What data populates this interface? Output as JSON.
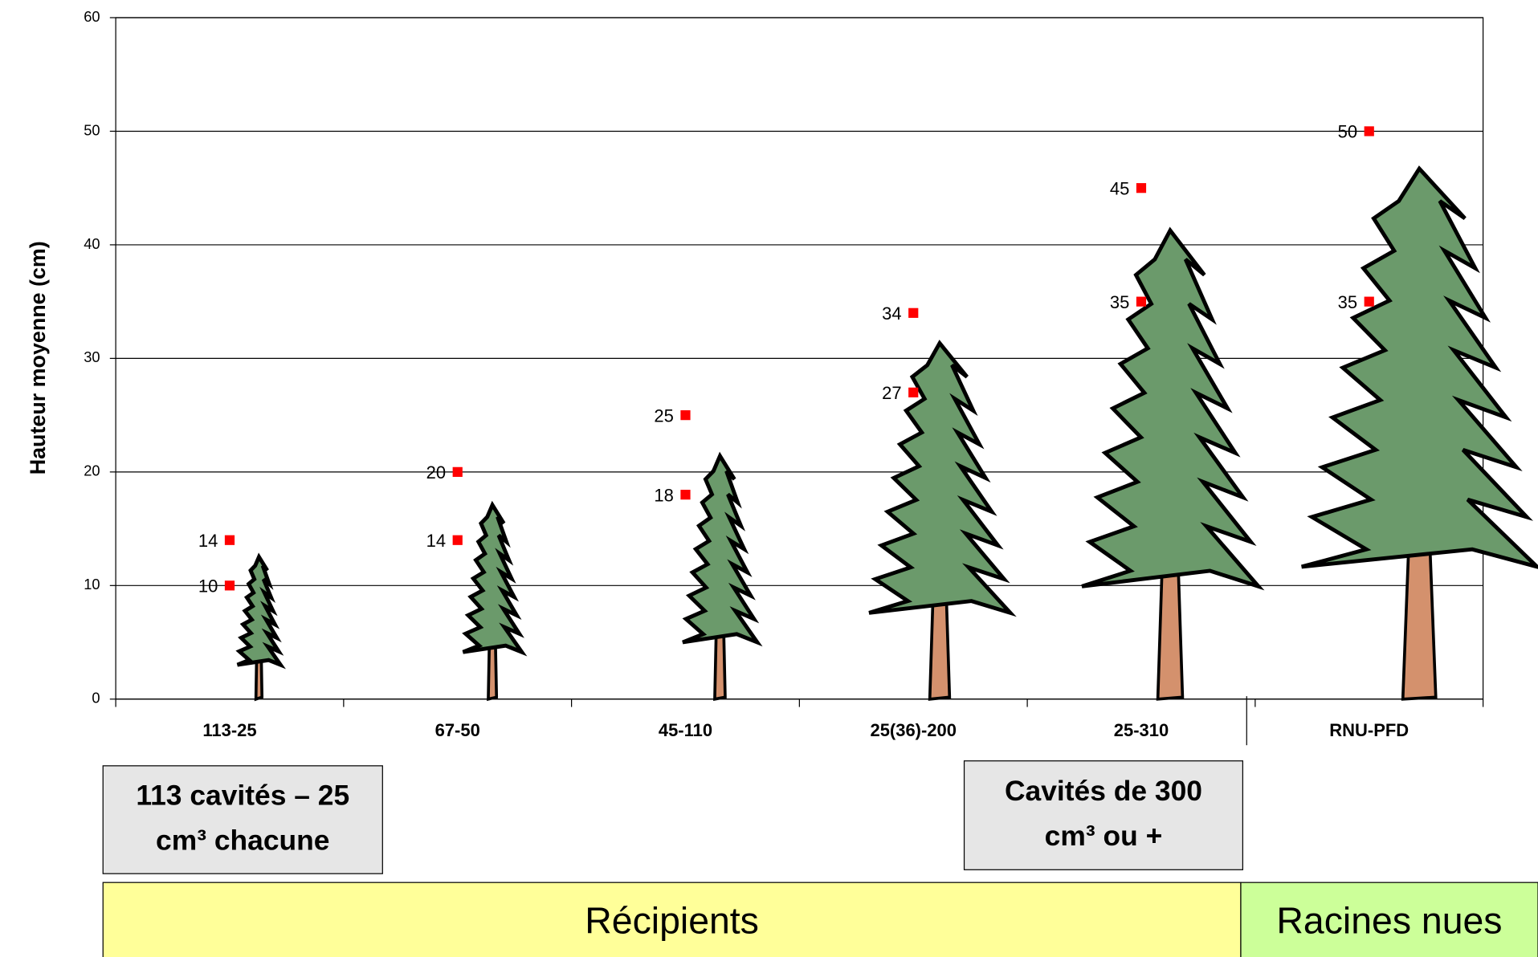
{
  "chart_data": {
    "type": "dot",
    "y_label": "Hauteur moyenne (cm)",
    "categories": [
      "113-25",
      "67-50",
      "45-110",
      "25(36)-200",
      "25-310",
      "RNU-PFD"
    ],
    "series": [
      {
        "color": "#ff0000",
        "values": [
          10,
          14,
          18,
          27,
          35,
          35
        ]
      },
      {
        "color": "#ff0000",
        "values": [
          14,
          20,
          25,
          34,
          45,
          50
        ]
      }
    ],
    "ylim": [
      0,
      60
    ],
    "yticks": [
      0,
      10,
      20,
      30,
      40,
      50,
      60
    ],
    "grid": true,
    "annotations": [
      {
        "lines": [
          "113 cavités – 25",
          "cm³ chacune"
        ]
      },
      {
        "lines": [
          "Cavités de 300",
          "cm³ ou +"
        ]
      }
    ],
    "groups": [
      {
        "label": "Récipients",
        "color": "#ffff99"
      },
      {
        "label": "Racines nues",
        "color": "#ccff99"
      }
    ]
  }
}
